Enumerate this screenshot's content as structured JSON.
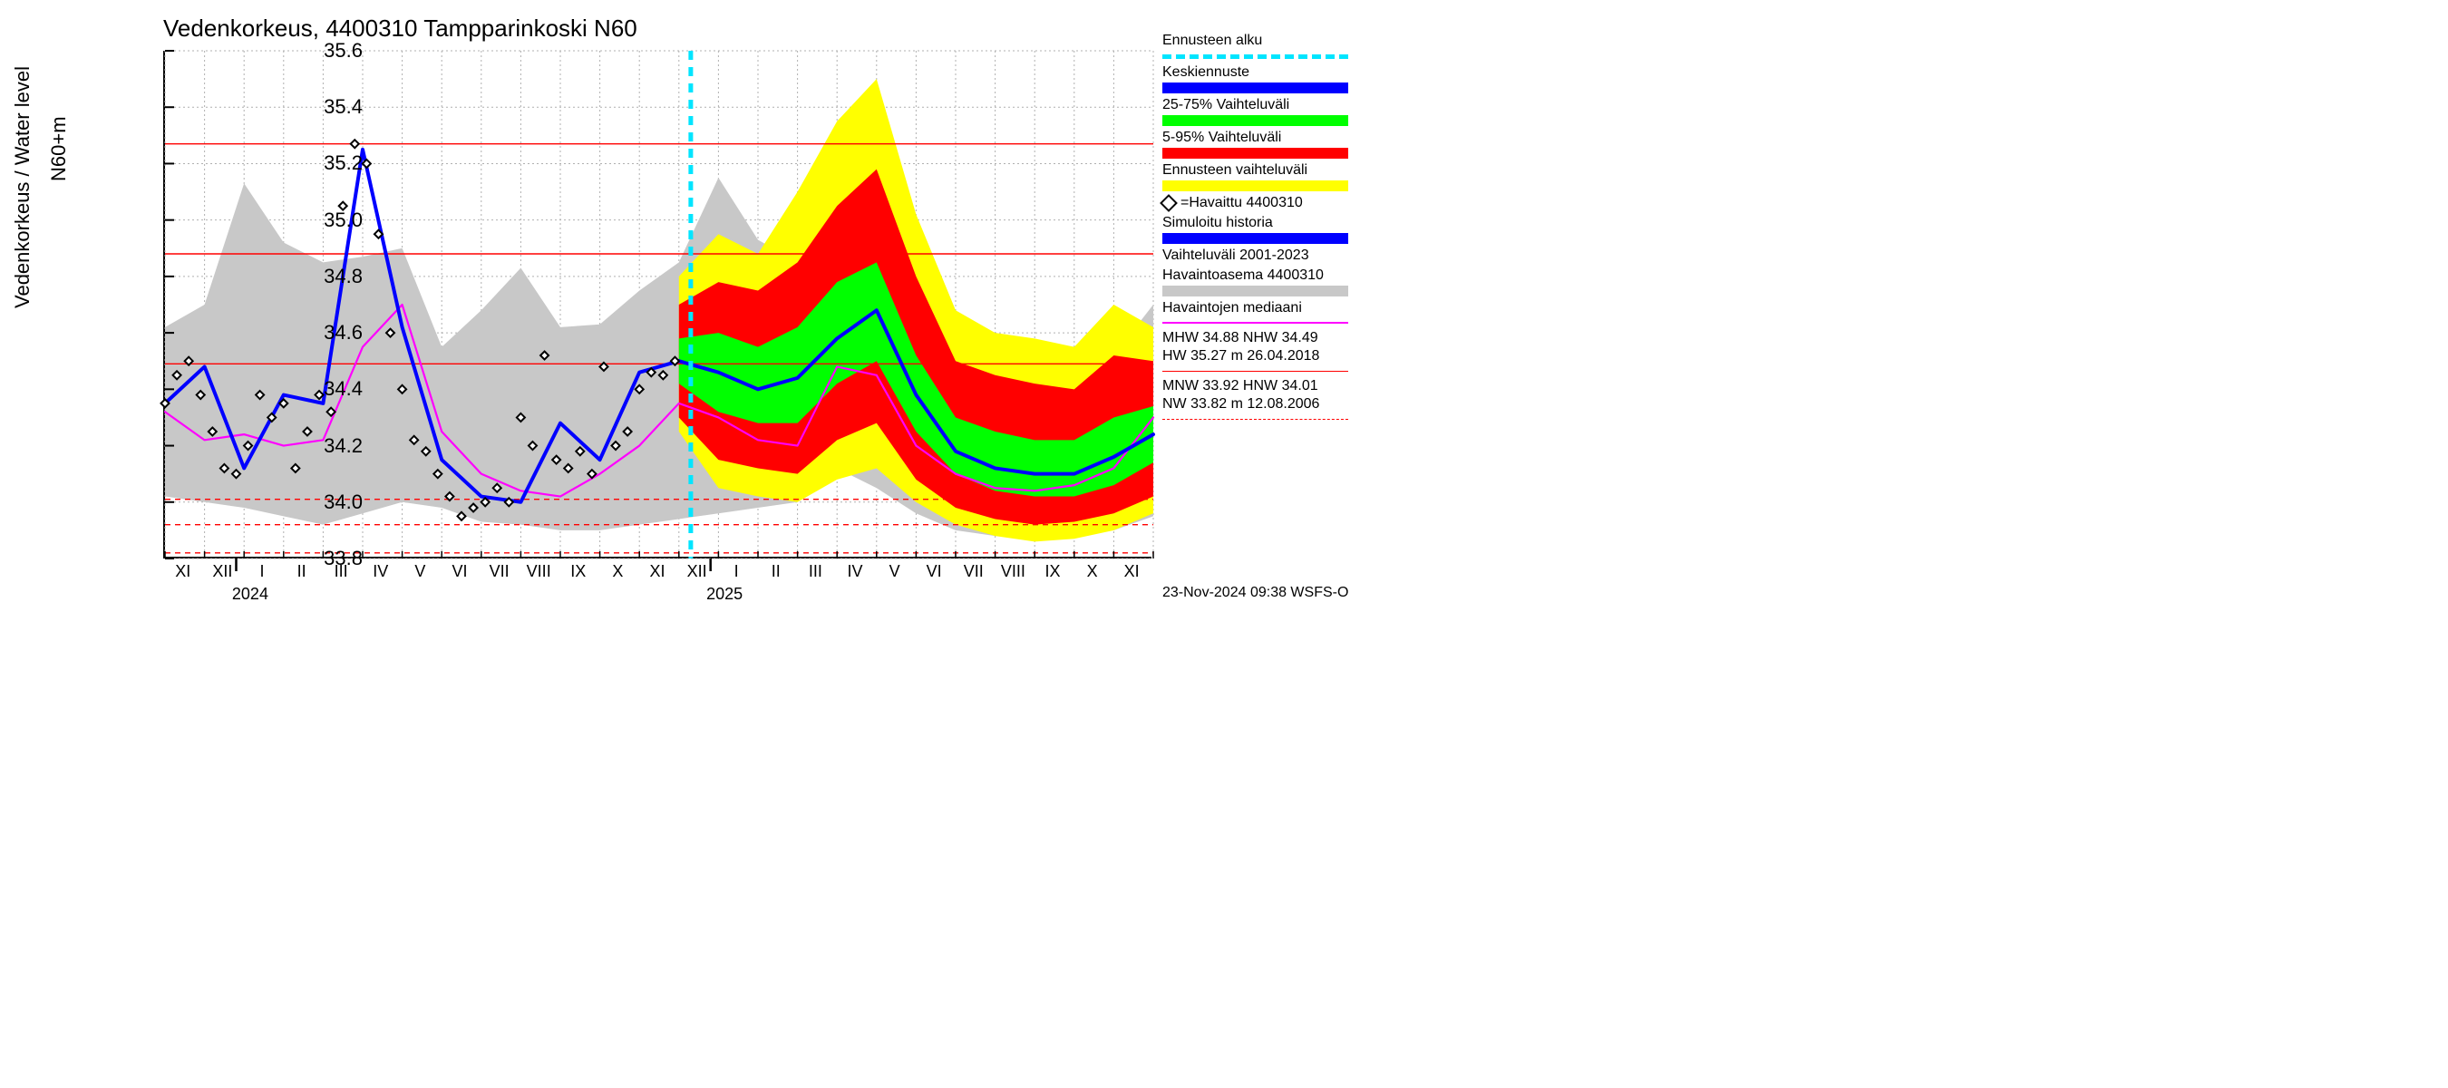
{
  "chart": {
    "type": "line+area",
    "title": "Vedenkorkeus, 4400310 Tampparinkoski N60",
    "ylabel_main": "Vedenkorkeus / Water level",
    "ylabel_unit": "N60+m",
    "background_color": "#ffffff",
    "plot_border_color": "#000000",
    "grid_color_minor": "#b0b0b0",
    "grid_color_major": "#888888",
    "grid_dash": "2,3",
    "title_fontsize": 26,
    "label_fontsize": 22,
    "tick_fontsize": 22,
    "xtick_fontsize": 18,
    "y_axis": {
      "min": 33.8,
      "max": 35.6,
      "tick_step": 0.2,
      "ticks": [
        33.8,
        34.0,
        34.2,
        34.4,
        34.6,
        34.8,
        35.0,
        35.2,
        35.4,
        35.6
      ]
    },
    "x_axis": {
      "n_points": 26,
      "month_labels": [
        "XI",
        "XII",
        "I",
        "II",
        "III",
        "IV",
        "V",
        "VI",
        "VII",
        "VIII",
        "IX",
        "X",
        "XI",
        "XII",
        "I",
        "II",
        "III",
        "IV",
        "V",
        "VI",
        "VII",
        "VIII",
        "IX",
        "X",
        "XI"
      ],
      "year_marks": [
        {
          "label": "2024",
          "at_index": 2.2
        },
        {
          "label": "2025",
          "at_index": 14.2
        }
      ],
      "forecast_start_index": 13.3
    },
    "reference_lines": {
      "hw_solid": [
        35.27,
        34.88,
        34.49
      ],
      "nw_dashed": [
        34.01,
        33.92,
        33.82
      ],
      "color": "#ff0000",
      "width": 1.4,
      "dash_pattern": "6,5"
    },
    "series": {
      "historical_band": {
        "color": "#c8c8c8",
        "upper": [
          34.62,
          34.7,
          35.13,
          34.92,
          34.85,
          34.87,
          34.9,
          34.55,
          34.68,
          34.83,
          34.62,
          34.63,
          34.75,
          34.85,
          35.15,
          34.93,
          34.85,
          35.28,
          35.3,
          34.6,
          34.48,
          34.42,
          34.38,
          34.35,
          34.52,
          34.7
        ],
        "lower": [
          34.02,
          34.0,
          33.98,
          33.95,
          33.92,
          33.96,
          34.0,
          33.98,
          33.93,
          33.92,
          33.9,
          33.9,
          33.92,
          33.94,
          33.96,
          33.98,
          34.0,
          34.12,
          34.05,
          33.96,
          33.9,
          33.88,
          33.87,
          33.88,
          33.9,
          33.95
        ]
      },
      "median_obs": {
        "color": "#ff00ff",
        "width": 2.2,
        "values": [
          34.32,
          34.22,
          34.24,
          34.2,
          34.22,
          34.55,
          34.7,
          34.25,
          34.1,
          34.04,
          34.02,
          34.1,
          34.2,
          34.35,
          34.3,
          34.22,
          34.2,
          34.48,
          34.45,
          34.2,
          34.1,
          34.05,
          34.04,
          34.06,
          34.12,
          34.3
        ]
      },
      "simulated_history": {
        "color": "#0000ff",
        "width": 4,
        "values": [
          34.35,
          34.48,
          34.12,
          34.38,
          34.35,
          35.25,
          34.62,
          34.15,
          34.02,
          34.0,
          34.28,
          34.15,
          34.46,
          34.5,
          null,
          null,
          null,
          null,
          null,
          null,
          null,
          null,
          null,
          null,
          null,
          null
        ]
      },
      "observed_points": {
        "marker": "diamond",
        "edge_color": "#000000",
        "fill_color": "#ffffff",
        "size": 9,
        "x": [
          0,
          0.3,
          0.6,
          0.9,
          1.2,
          1.5,
          1.8,
          2.1,
          2.4,
          2.7,
          3.0,
          3.3,
          3.6,
          3.9,
          4.2,
          4.5,
          4.8,
          5.1,
          5.4,
          5.7,
          6.0,
          6.3,
          6.6,
          6.9,
          7.2,
          7.5,
          7.8,
          8.1,
          8.4,
          8.7,
          9.0,
          9.3,
          9.6,
          9.9,
          10.2,
          10.5,
          10.8,
          11.1,
          11.4,
          11.7,
          12.0,
          12.3,
          12.6,
          12.9
        ],
        "y": [
          34.35,
          34.45,
          34.5,
          34.38,
          34.25,
          34.12,
          34.1,
          34.2,
          34.38,
          34.3,
          34.35,
          34.12,
          34.25,
          34.38,
          34.32,
          35.05,
          35.27,
          35.2,
          34.95,
          34.6,
          34.4,
          34.22,
          34.18,
          34.1,
          34.02,
          33.95,
          33.98,
          34.0,
          34.05,
          34.0,
          34.3,
          34.2,
          34.52,
          34.15,
          34.12,
          34.18,
          34.1,
          34.48,
          34.2,
          34.25,
          34.4,
          34.46,
          34.45,
          34.5
        ]
      },
      "forecast_full_band": {
        "color": "#ffff00",
        "upper": [
          null,
          null,
          null,
          null,
          null,
          null,
          null,
          null,
          null,
          null,
          null,
          null,
          null,
          34.8,
          34.95,
          34.88,
          35.1,
          35.35,
          35.5,
          35.02,
          34.68,
          34.6,
          34.58,
          34.55,
          34.7,
          34.62
        ],
        "lower": [
          null,
          null,
          null,
          null,
          null,
          null,
          null,
          null,
          null,
          null,
          null,
          null,
          null,
          34.25,
          34.05,
          34.02,
          34.0,
          34.08,
          34.12,
          34.0,
          33.92,
          33.88,
          33.86,
          33.87,
          33.9,
          33.96
        ]
      },
      "forecast_90_band": {
        "color": "#ff0000",
        "upper": [
          null,
          null,
          null,
          null,
          null,
          null,
          null,
          null,
          null,
          null,
          null,
          null,
          null,
          34.7,
          34.78,
          34.75,
          34.85,
          35.05,
          35.18,
          34.8,
          34.5,
          34.45,
          34.42,
          34.4,
          34.52,
          34.5
        ],
        "lower": [
          null,
          null,
          null,
          null,
          null,
          null,
          null,
          null,
          null,
          null,
          null,
          null,
          null,
          34.3,
          34.15,
          34.12,
          34.1,
          34.22,
          34.28,
          34.08,
          33.98,
          33.94,
          33.92,
          33.93,
          33.96,
          34.02
        ]
      },
      "forecast_50_band": {
        "color": "#00ff00",
        "upper": [
          null,
          null,
          null,
          null,
          null,
          null,
          null,
          null,
          null,
          null,
          null,
          null,
          null,
          34.58,
          34.6,
          34.55,
          34.62,
          34.78,
          34.85,
          34.52,
          34.3,
          34.25,
          34.22,
          34.22,
          34.3,
          34.34
        ],
        "lower": [
          null,
          null,
          null,
          null,
          null,
          null,
          null,
          null,
          null,
          null,
          null,
          null,
          null,
          34.42,
          34.32,
          34.28,
          34.28,
          34.42,
          34.5,
          34.25,
          34.1,
          34.04,
          34.02,
          34.02,
          34.06,
          34.14
        ]
      },
      "forecast_median": {
        "color": "#0000ff",
        "width": 4,
        "values": [
          null,
          null,
          null,
          null,
          null,
          null,
          null,
          null,
          null,
          null,
          null,
          null,
          null,
          34.5,
          34.46,
          34.4,
          34.44,
          34.58,
          34.68,
          34.38,
          34.18,
          34.12,
          34.1,
          34.1,
          34.16,
          34.24
        ]
      }
    },
    "forecast_start_line": {
      "color": "#00e5ff",
      "width": 5,
      "dash": "10,8"
    }
  },
  "legend": {
    "entries": [
      {
        "label": "Ennusteen alku",
        "type": "dashed-line",
        "color": "#00e5ff",
        "dash": "10,8",
        "width": 5
      },
      {
        "label": "Keskiennuste",
        "type": "swatch",
        "color": "#0000ff"
      },
      {
        "label": "25-75% Vaihteluväli",
        "type": "swatch",
        "color": "#00ff00"
      },
      {
        "label": "5-95% Vaihteluväli",
        "type": "swatch",
        "color": "#ff0000"
      },
      {
        "label": "Ennusteen vaihteluväli",
        "type": "swatch",
        "color": "#ffff00"
      },
      {
        "label": "=Havaittu 4400310",
        "type": "diamond"
      },
      {
        "label": "Simuloitu historia",
        "type": "swatch",
        "color": "#0000ff"
      },
      {
        "label": "Vaihteluväli 2001-2023",
        "type": "text"
      },
      {
        "label": " Havaintoasema 4400310",
        "type": "swatch",
        "color": "#c8c8c8"
      },
      {
        "label": "Havaintojen mediaani",
        "type": "line",
        "color": "#ff00ff",
        "width": 2
      }
    ],
    "stats_hw": {
      "line1": "MHW  34.88 NHW  34.49",
      "line2": "HW  35.27 m 26.04.2018",
      "line_color": "#ff0000",
      "line_style": "solid"
    },
    "stats_nw": {
      "line1": "MNW  33.92 HNW  34.01",
      "line2": "NW  33.82 m 12.08.2006",
      "line_color": "#ff0000",
      "line_style": "dashed"
    }
  },
  "timestamp": "23-Nov-2024 09:38 WSFS-O"
}
